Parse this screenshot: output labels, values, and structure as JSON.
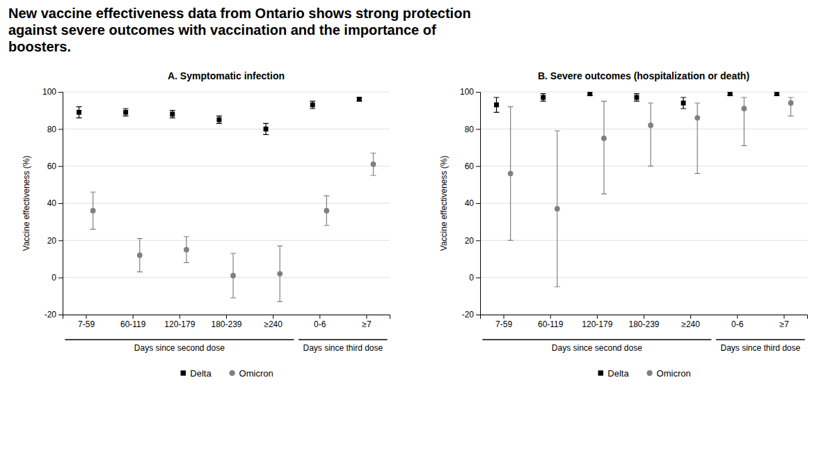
{
  "title": "New vaccine effectiveness data from Ontario shows strong protection\nagainst severe outcomes with vaccination and the importance of\nboosters.",
  "chart_data": [
    {
      "type": "scatter",
      "title": "A. Symptomatic infection",
      "categories": [
        "7-59",
        "60-119",
        "120-179",
        "180-239",
        "≥240",
        "0-6",
        "≥7"
      ],
      "category_groups": [
        {
          "label": "Days since second dose",
          "size": 5
        },
        {
          "label": "Days since third dose",
          "size": 2
        }
      ],
      "ylabel": "Vaccine effectiveness (%)",
      "ylim": [
        -20,
        100
      ],
      "yticks": [
        -20,
        0,
        20,
        40,
        60,
        80,
        100
      ],
      "grid": true,
      "legend": "bottom",
      "series": [
        {
          "name": "Delta",
          "color": "#000000",
          "marker": "square",
          "values": [
            89,
            89,
            88,
            85,
            80,
            93,
            96
          ],
          "yerr_lo": [
            3,
            2,
            2,
            2,
            3,
            2,
            1
          ],
          "yerr_hi": [
            3,
            2,
            2,
            2,
            3,
            2,
            1
          ]
        },
        {
          "name": "Omicron",
          "color": "#808080",
          "marker": "circle",
          "values": [
            36,
            12,
            15,
            1,
            2,
            36,
            61
          ],
          "yerr_lo": [
            10,
            9,
            7,
            12,
            15,
            8,
            6
          ],
          "yerr_hi": [
            10,
            9,
            7,
            12,
            15,
            8,
            6
          ]
        }
      ]
    },
    {
      "type": "scatter",
      "title": "B. Severe outcomes (hospitalization or death)",
      "categories": [
        "7-59",
        "60-119",
        "120-179",
        "180-239",
        "≥240",
        "0-6",
        "≥7"
      ],
      "category_groups": [
        {
          "label": "Days since second dose",
          "size": 5
        },
        {
          "label": "Days since third dose",
          "size": 2
        }
      ],
      "ylabel": "Vaccine effectiveness (%)",
      "ylim": [
        -20,
        100
      ],
      "yticks": [
        -20,
        0,
        20,
        40,
        60,
        80,
        100
      ],
      "grid": true,
      "legend": "bottom",
      "series": [
        {
          "name": "Delta",
          "color": "#000000",
          "marker": "square",
          "values": [
            93,
            97,
            99,
            97,
            94,
            99,
            99
          ],
          "yerr_lo": [
            4,
            2,
            1,
            2,
            3,
            1,
            1
          ],
          "yerr_hi": [
            4,
            2,
            1,
            2,
            3,
            1,
            1
          ]
        },
        {
          "name": "Omicron",
          "color": "#808080",
          "marker": "circle",
          "values": [
            56,
            37,
            75,
            82,
            86,
            91,
            94
          ],
          "yerr_lo": [
            36,
            42,
            30,
            22,
            30,
            20,
            7
          ],
          "yerr_hi": [
            36,
            42,
            20,
            12,
            8,
            6,
            3
          ]
        }
      ]
    }
  ]
}
